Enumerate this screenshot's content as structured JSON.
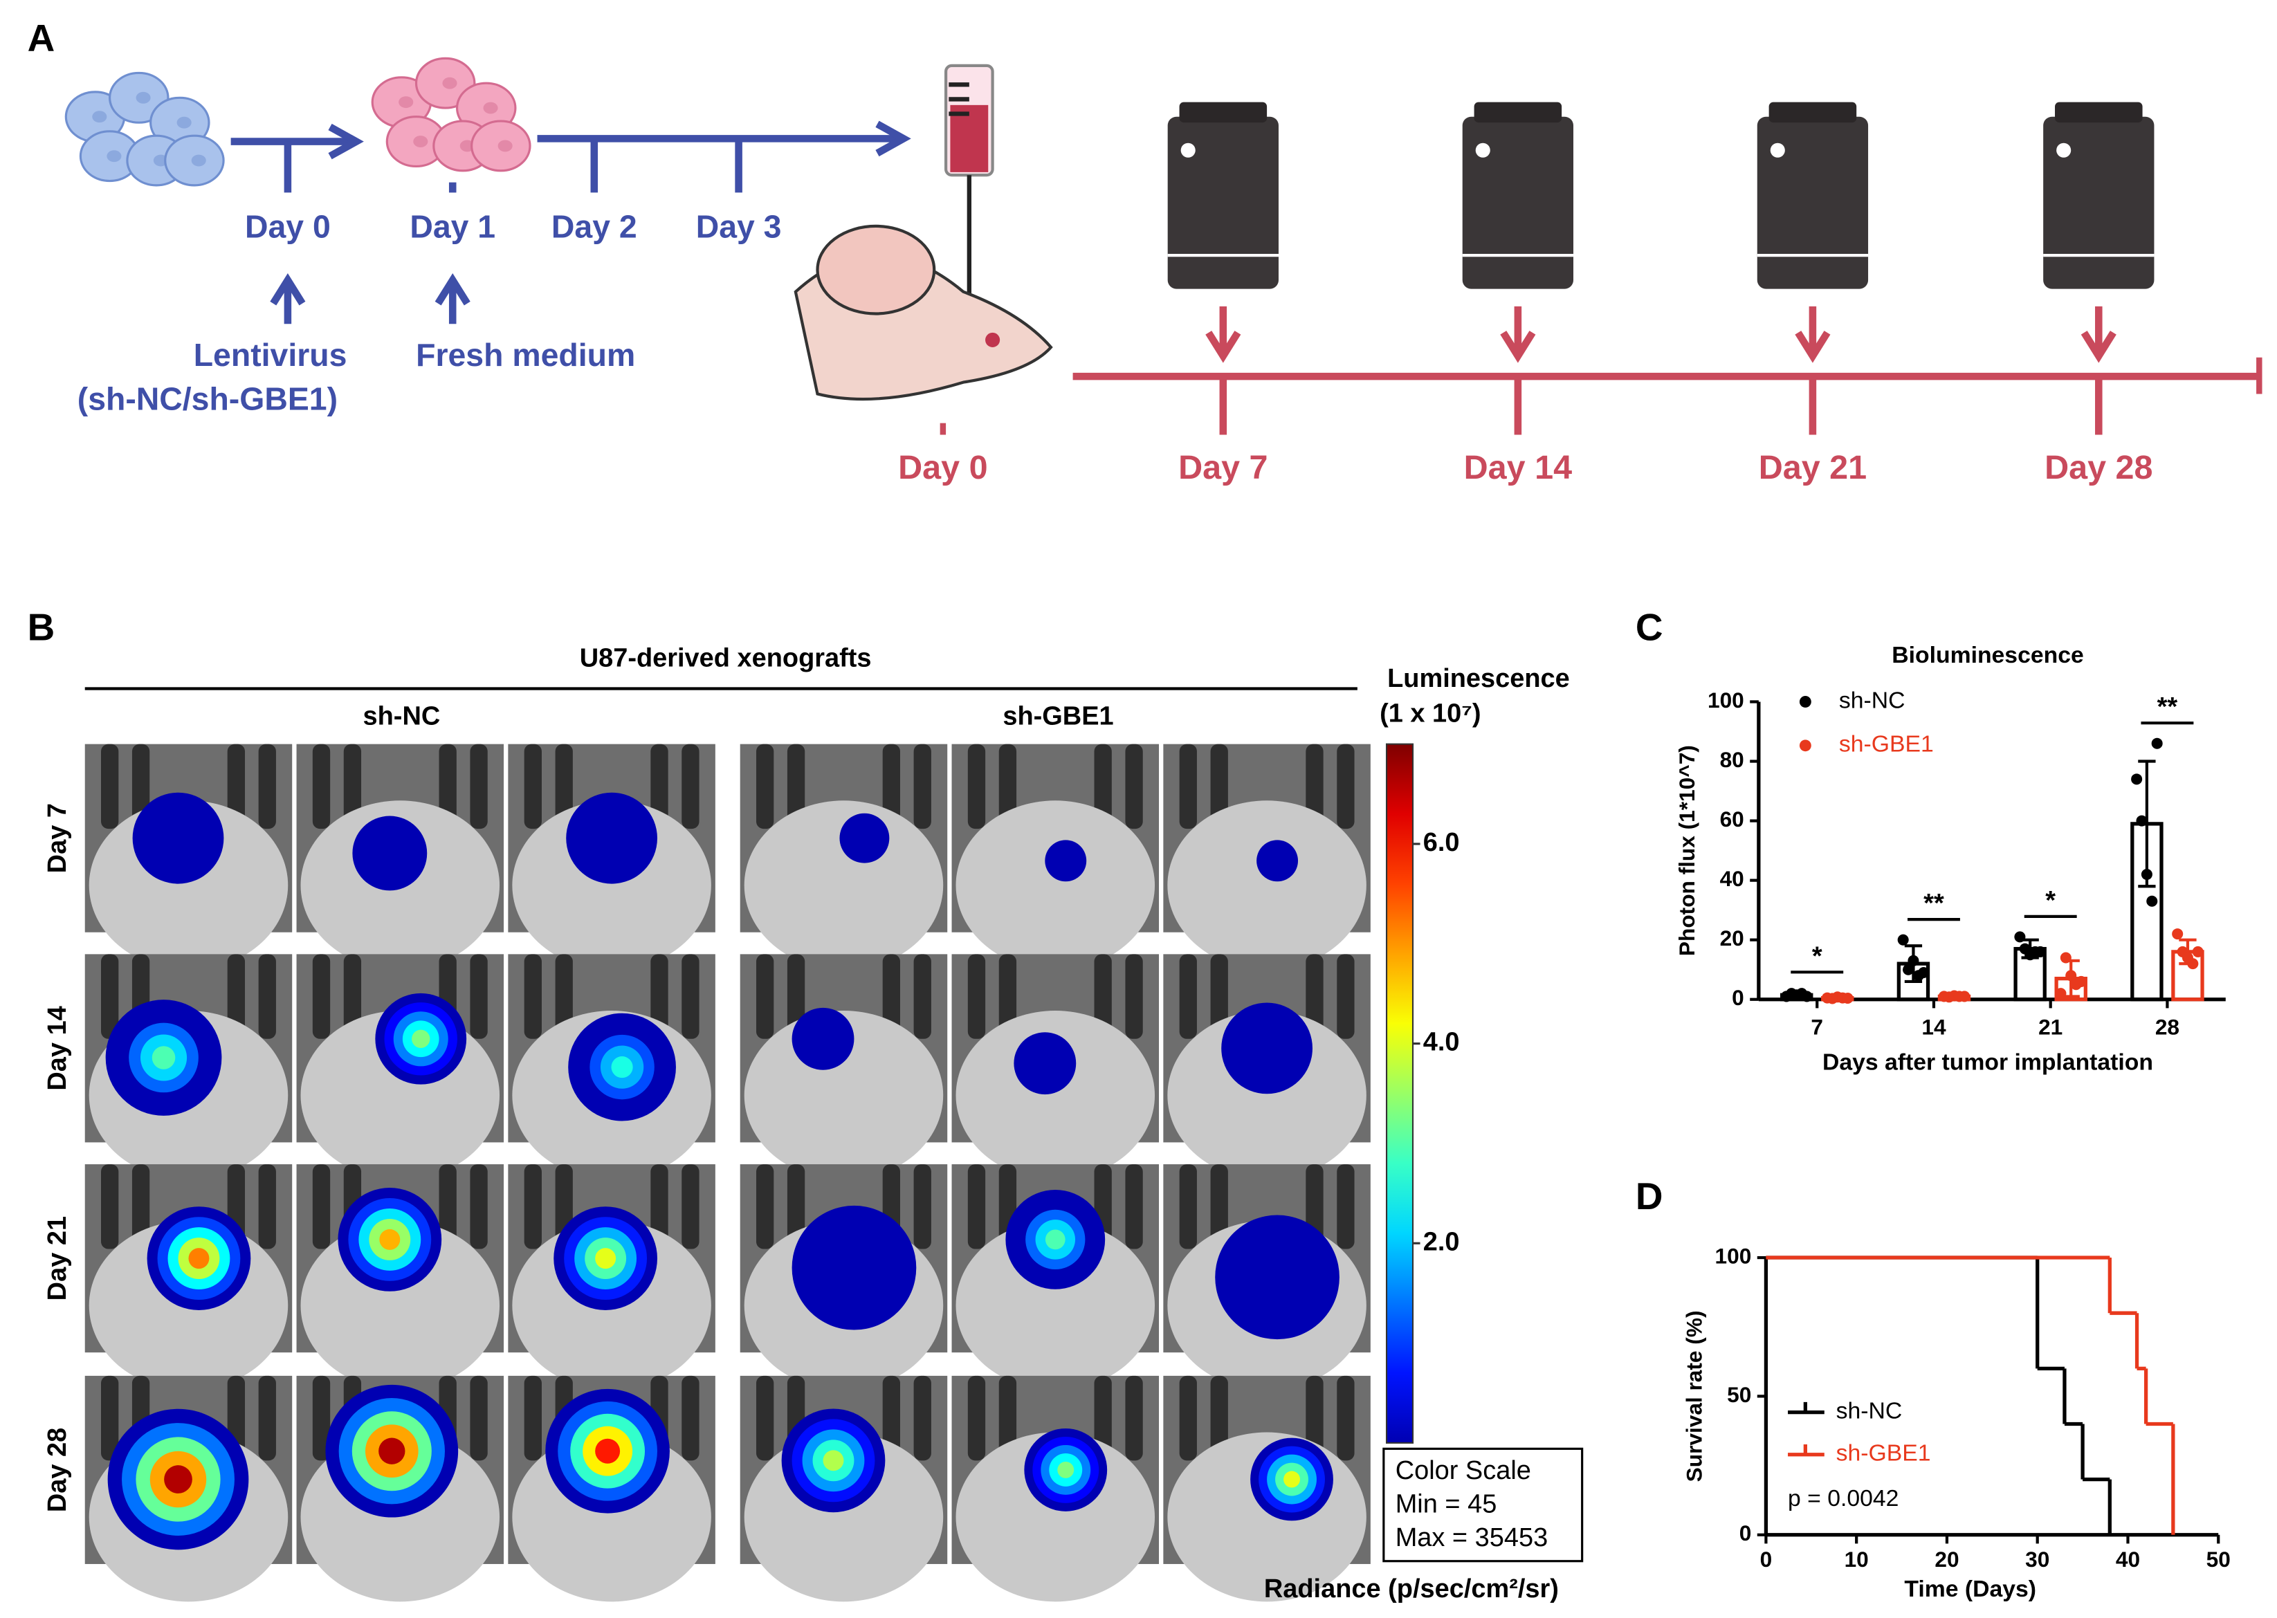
{
  "panel_labels": [
    "A",
    "B",
    "C",
    "D"
  ],
  "panel_a": {
    "culture_days": [
      "Day 0",
      "Day 1",
      "Day 2",
      "Day 3"
    ],
    "lentivirus": [
      "Lentivirus",
      "(sh-NC/sh-GBE1)"
    ],
    "medium": "Fresh medium",
    "imaging_days": [
      "Day 0",
      "Day 7",
      "Day 14",
      "Day 21",
      "Day 28"
    ]
  },
  "panel_b": {
    "title": "U87-derived xenografts",
    "groups": [
      "sh-NC",
      "sh-GBE1"
    ],
    "rows": [
      "Day 7",
      "Day 14",
      "Day 21",
      "Day 28"
    ],
    "colorbar": {
      "title": [
        "Luminescence",
        "(1 x 10⁷)"
      ],
      "lim": [
        0,
        7
      ],
      "ticks": [
        {
          "value": 6,
          "label": "6.0"
        },
        {
          "value": 4,
          "label": "4.0"
        },
        {
          "value": 2,
          "label": "2.0"
        }
      ]
    },
    "color_scale": [
      "Color Scale",
      "Min = 45",
      "Max = 35453"
    ],
    "unit": "Radiance (p/sec/cm²/sr)"
  },
  "chart_data": [
    {
      "type": "bar",
      "title": "Bioluminescence",
      "ylabel": "Photon flux (1*10^7)",
      "xlabel": "Days after tumor implantation",
      "categories": [
        "7",
        "14",
        "21",
        "28"
      ],
      "ylim": [
        0,
        100
      ],
      "yticks": [
        0,
        20,
        40,
        60,
        80,
        100
      ],
      "series": [
        {
          "name": "sh-NC",
          "color": "#000000",
          "values": [
            1.5,
            12,
            17,
            59
          ],
          "errors": [
            0.8,
            6,
            3,
            21
          ],
          "points": [
            [
              1,
              2,
              1.5,
              2,
              1
            ],
            [
              20,
              10,
              13,
              8,
              9
            ],
            [
              21,
              17,
              15,
              16,
              16
            ],
            [
              74,
              60,
              42,
              33,
              86
            ]
          ]
        },
        {
          "name": "sh-GBE1",
          "color": "#e8391d",
          "values": [
            0.5,
            1,
            7,
            16
          ],
          "errors": [
            0.3,
            0.5,
            6,
            4
          ],
          "points": [
            [
              0.5,
              0.3,
              0.8,
              0.5,
              0.4
            ],
            [
              1,
              0.8,
              1.2,
              1,
              1
            ],
            [
              2,
              14,
              8,
              5,
              6
            ],
            [
              22,
              16,
              14,
              12,
              16
            ]
          ]
        }
      ],
      "significance": [
        "*",
        "**",
        "*",
        "**"
      ]
    },
    {
      "type": "step",
      "ylabel": "Survival rate (%)",
      "xlabel": "Time (Days)",
      "xlim": [
        0,
        50
      ],
      "xticks": [
        0,
        10,
        20,
        30,
        40,
        50
      ],
      "ylim": [
        0,
        100
      ],
      "yticks": [
        0,
        50,
        100
      ],
      "series": [
        {
          "name": "sh-NC",
          "color": "#000000",
          "x": [
            0,
            30,
            33,
            35,
            38
          ],
          "values": [
            100,
            60,
            40,
            20,
            0
          ]
        },
        {
          "name": "sh-GBE1",
          "color": "#e8391d",
          "x": [
            0,
            38,
            41,
            42,
            45
          ],
          "values": [
            100,
            80,
            60,
            40,
            0
          ]
        }
      ],
      "annotation": "p = 0.0042"
    }
  ]
}
